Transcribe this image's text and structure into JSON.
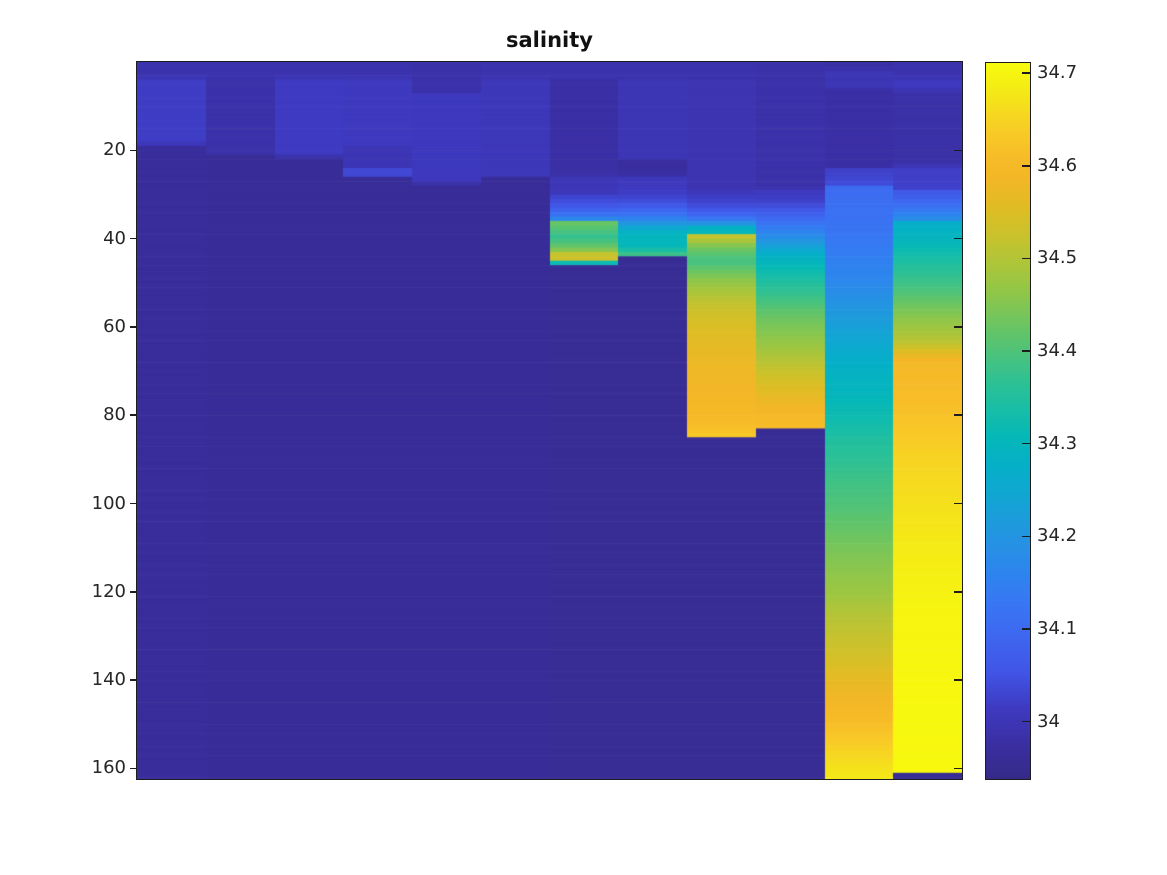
{
  "title": "salinity",
  "y_axis": {
    "tick_labels": [
      "20",
      "40",
      "60",
      "80",
      "100",
      "120",
      "140",
      "160"
    ],
    "tick_values": [
      20,
      40,
      60,
      80,
      100,
      120,
      140,
      160
    ]
  },
  "x_axis": {
    "tick_labels": []
  },
  "colorbar": {
    "tick_labels": [
      "34.7",
      "34.6",
      "34.5",
      "34.4",
      "34.3",
      "34.2",
      "34.1",
      "34"
    ],
    "tick_values": [
      34.7,
      34.6,
      34.5,
      34.4,
      34.3,
      34.2,
      34.1,
      34.0
    ],
    "min": 33.938,
    "max": 34.711
  },
  "chart_data": {
    "type": "heatmap",
    "title": "salinity",
    "xlabel": "",
    "ylabel": "",
    "n_columns": 12,
    "y_range": [
      0,
      162.4
    ],
    "y_ticks": [
      20,
      40,
      60,
      80,
      100,
      120,
      140,
      160
    ],
    "grid": false,
    "legend_position": "right-colorbar",
    "color_range": [
      33.938,
      34.711
    ],
    "colormap": "parula",
    "colormap_anchors": [
      [
        0.0,
        [
          53,
          42,
          135
        ]
      ],
      [
        0.05,
        [
          58,
          47,
          163
        ]
      ],
      [
        0.1,
        [
          62,
          58,
          193
        ]
      ],
      [
        0.15,
        [
          65,
          85,
          230
        ]
      ],
      [
        0.2,
        [
          62,
          103,
          240
        ]
      ],
      [
        0.25,
        [
          55,
          120,
          243
        ]
      ],
      [
        0.28,
        [
          47,
          130,
          240
        ]
      ],
      [
        0.32,
        [
          40,
          143,
          230
        ]
      ],
      [
        0.36,
        [
          30,
          155,
          220
        ]
      ],
      [
        0.4,
        [
          16,
          167,
          210
        ]
      ],
      [
        0.44,
        [
          5,
          176,
          199
        ]
      ],
      [
        0.48,
        [
          5,
          184,
          184
        ]
      ],
      [
        0.52,
        [
          26,
          190,
          165
        ]
      ],
      [
        0.56,
        [
          49,
          193,
          145
        ]
      ],
      [
        0.6,
        [
          80,
          195,
          120
        ]
      ],
      [
        0.64,
        [
          112,
          197,
          95
        ]
      ],
      [
        0.68,
        [
          144,
          198,
          73
        ]
      ],
      [
        0.72,
        [
          174,
          197,
          57
        ]
      ],
      [
        0.76,
        [
          202,
          194,
          44
        ]
      ],
      [
        0.8,
        [
          225,
          188,
          36
        ]
      ],
      [
        0.84,
        [
          243,
          182,
          38
        ]
      ],
      [
        0.87,
        [
          247,
          188,
          40
        ]
      ],
      [
        0.9,
        [
          248,
          201,
          39
        ]
      ],
      [
        0.93,
        [
          246,
          216,
          32
        ]
      ],
      [
        0.96,
        [
          244,
          233,
          22
        ]
      ],
      [
        1.0,
        [
          248,
          251,
          13
        ]
      ]
    ],
    "columns": [
      {
        "stops": [
          [
            0,
            33.99
          ],
          [
            3.4,
            33.99
          ],
          [
            3.7,
            34.02
          ],
          [
            18.4,
            34.02
          ],
          [
            18.8,
            33.965
          ],
          [
            162.4,
            33.965
          ]
        ]
      },
      {
        "stops": [
          [
            0,
            33.99
          ],
          [
            3.6,
            33.99
          ],
          [
            4.0,
            33.985
          ],
          [
            20.8,
            33.985
          ],
          [
            21.2,
            33.962
          ],
          [
            162.4,
            33.962
          ]
        ]
      },
      {
        "stops": [
          [
            0,
            33.99
          ],
          [
            3.4,
            33.99
          ],
          [
            3.7,
            34.015
          ],
          [
            21.3,
            34.015
          ],
          [
            21.7,
            33.962
          ],
          [
            162.4,
            33.962
          ]
        ]
      },
      {
        "stops": [
          [
            0,
            33.99
          ],
          [
            3.4,
            33.99
          ],
          [
            3.7,
            34.012
          ],
          [
            19.0,
            34.012
          ],
          [
            19.4,
            33.998
          ],
          [
            23.8,
            33.998
          ],
          [
            24.2,
            34.035
          ],
          [
            25.8,
            34.035
          ],
          [
            26.2,
            33.962
          ],
          [
            162.4,
            33.962
          ]
        ]
      },
      {
        "stops": [
          [
            0,
            33.985
          ],
          [
            6.8,
            33.985
          ],
          [
            7.2,
            34.01
          ],
          [
            27.3,
            34.01
          ],
          [
            27.7,
            33.962
          ],
          [
            162.4,
            33.962
          ]
        ]
      },
      {
        "stops": [
          [
            0,
            33.99
          ],
          [
            3.4,
            33.99
          ],
          [
            3.7,
            34.005
          ],
          [
            25.8,
            34.005
          ],
          [
            26.2,
            33.962
          ],
          [
            162.4,
            33.962
          ]
        ]
      },
      {
        "stops": [
          [
            0,
            33.99
          ],
          [
            3.6,
            33.99
          ],
          [
            4.0,
            33.978
          ],
          [
            25.4,
            33.978
          ],
          [
            25.8,
            34.0
          ],
          [
            29.6,
            34.005
          ],
          [
            30.5,
            34.03
          ],
          [
            32.8,
            34.06
          ],
          [
            34.0,
            34.1
          ],
          [
            35.2,
            34.15
          ],
          [
            35.9,
            34.19
          ],
          [
            36.2,
            34.43
          ],
          [
            37.5,
            34.41
          ],
          [
            39.5,
            34.375
          ],
          [
            41.0,
            34.4
          ],
          [
            42.0,
            34.43
          ],
          [
            43.0,
            34.47
          ],
          [
            43.4,
            34.48
          ],
          [
            43.7,
            34.6
          ],
          [
            44.3,
            34.6
          ],
          [
            44.7,
            34.46
          ],
          [
            45.4,
            34.44
          ],
          [
            45.8,
            33.958
          ],
          [
            162.4,
            33.958
          ]
        ]
      },
      {
        "stops": [
          [
            0,
            33.99
          ],
          [
            3.6,
            33.99
          ],
          [
            4.0,
            34.0
          ],
          [
            21.5,
            34.0
          ],
          [
            22.0,
            33.972
          ],
          [
            25.4,
            33.972
          ],
          [
            25.8,
            34.005
          ],
          [
            30.0,
            34.02
          ],
          [
            32.0,
            34.05
          ],
          [
            33.5,
            34.09
          ],
          [
            34.8,
            34.13
          ],
          [
            35.8,
            34.17
          ],
          [
            36.8,
            34.22
          ],
          [
            37.8,
            34.26
          ],
          [
            38.8,
            34.295
          ],
          [
            41.8,
            34.305
          ],
          [
            42.6,
            34.34
          ],
          [
            43.2,
            34.37
          ],
          [
            43.5,
            34.38
          ],
          [
            43.8,
            33.958
          ],
          [
            162.4,
            33.958
          ]
        ]
      },
      {
        "stops": [
          [
            0,
            33.99
          ],
          [
            3.6,
            33.99
          ],
          [
            4.0,
            33.995
          ],
          [
            29.3,
            33.995
          ],
          [
            29.7,
            34.015
          ],
          [
            32.0,
            34.03
          ],
          [
            33.5,
            34.06
          ],
          [
            34.8,
            34.1
          ],
          [
            35.8,
            34.14
          ],
          [
            36.4,
            34.18
          ],
          [
            36.9,
            34.24
          ],
          [
            37.5,
            34.28
          ],
          [
            38.2,
            34.3
          ],
          [
            38.5,
            34.3
          ],
          [
            38.8,
            34.52
          ],
          [
            39.6,
            34.52
          ],
          [
            40.5,
            34.49
          ],
          [
            41.5,
            34.455
          ],
          [
            42.5,
            34.43
          ],
          [
            44.0,
            34.4
          ],
          [
            45.3,
            34.39
          ],
          [
            47.0,
            34.42
          ],
          [
            49.0,
            34.455
          ],
          [
            51.0,
            34.48
          ],
          [
            53.0,
            34.5
          ],
          [
            55.0,
            34.52
          ],
          [
            58.0,
            34.54
          ],
          [
            62.0,
            34.555
          ],
          [
            68.0,
            34.575
          ],
          [
            75.0,
            34.59
          ],
          [
            80.0,
            34.6
          ],
          [
            82.0,
            34.61
          ],
          [
            84.0,
            34.625
          ],
          [
            84.6,
            34.63
          ],
          [
            85.0,
            33.958
          ],
          [
            162.4,
            33.958
          ]
        ]
      },
      {
        "stops": [
          [
            0,
            33.985
          ],
          [
            28.4,
            33.985
          ],
          [
            28.8,
            34.01
          ],
          [
            31.5,
            34.025
          ],
          [
            33.0,
            34.05
          ],
          [
            34.5,
            34.08
          ],
          [
            36.0,
            34.11
          ],
          [
            37.5,
            34.14
          ],
          [
            39.0,
            34.17
          ],
          [
            40.5,
            34.2
          ],
          [
            42.0,
            34.24
          ],
          [
            43.5,
            34.275
          ],
          [
            45.5,
            34.3
          ],
          [
            48.0,
            34.33
          ],
          [
            51.0,
            34.36
          ],
          [
            54.0,
            34.39
          ],
          [
            57.0,
            34.42
          ],
          [
            60.0,
            34.445
          ],
          [
            63.0,
            34.465
          ],
          [
            66.0,
            34.49
          ],
          [
            69.0,
            34.515
          ],
          [
            72.0,
            34.54
          ],
          [
            75.0,
            34.56
          ],
          [
            78.0,
            34.585
          ],
          [
            81.0,
            34.6
          ],
          [
            82.6,
            34.61
          ],
          [
            83.0,
            33.958
          ],
          [
            162.4,
            33.958
          ]
        ]
      },
      {
        "stops": [
          [
            0,
            33.98
          ],
          [
            1.4,
            33.98
          ],
          [
            1.7,
            34.0
          ],
          [
            5.5,
            34.0
          ],
          [
            5.9,
            33.978
          ],
          [
            23.8,
            33.978
          ],
          [
            24.2,
            34.02
          ],
          [
            27.6,
            34.04
          ],
          [
            28.0,
            34.1
          ],
          [
            30.0,
            34.105
          ],
          [
            35.0,
            34.115
          ],
          [
            40.0,
            34.13
          ],
          [
            45.0,
            34.15
          ],
          [
            50.0,
            34.17
          ],
          [
            55.0,
            34.2
          ],
          [
            60.0,
            34.23
          ],
          [
            65.0,
            34.26
          ],
          [
            70.0,
            34.285
          ],
          [
            75.0,
            34.3
          ],
          [
            78.0,
            34.315
          ],
          [
            82.0,
            34.33
          ],
          [
            86.0,
            34.35
          ],
          [
            90.0,
            34.365
          ],
          [
            95.0,
            34.385
          ],
          [
            100.0,
            34.4
          ],
          [
            105.0,
            34.42
          ],
          [
            110.0,
            34.44
          ],
          [
            115.0,
            34.46
          ],
          [
            120.0,
            34.475
          ],
          [
            125.0,
            34.5
          ],
          [
            130.0,
            34.52
          ],
          [
            135.0,
            34.54
          ],
          [
            140.0,
            34.565
          ],
          [
            145.0,
            34.59
          ],
          [
            150.0,
            34.615
          ],
          [
            153.0,
            34.63
          ],
          [
            156.0,
            34.65
          ],
          [
            159.0,
            34.665
          ],
          [
            162.4,
            34.68
          ]
        ]
      },
      {
        "stops": [
          [
            0,
            33.99
          ],
          [
            3.4,
            33.99
          ],
          [
            3.7,
            34.01
          ],
          [
            6.3,
            34.01
          ],
          [
            6.7,
            33.982
          ],
          [
            23.3,
            33.982
          ],
          [
            23.7,
            34.02
          ],
          [
            28.5,
            34.025
          ],
          [
            29.5,
            34.06
          ],
          [
            31.5,
            34.09
          ],
          [
            33.0,
            34.12
          ],
          [
            34.5,
            34.16
          ],
          [
            35.9,
            34.19
          ],
          [
            36.3,
            34.27
          ],
          [
            38.0,
            34.285
          ],
          [
            40.5,
            34.3
          ],
          [
            43.0,
            34.325
          ],
          [
            46.0,
            34.35
          ],
          [
            49.0,
            34.375
          ],
          [
            52.0,
            34.4
          ],
          [
            55.0,
            34.43
          ],
          [
            58.0,
            34.46
          ],
          [
            61.0,
            34.485
          ],
          [
            63.5,
            34.51
          ],
          [
            65.5,
            34.55
          ],
          [
            67.0,
            34.58
          ],
          [
            68.5,
            34.6
          ],
          [
            72.0,
            34.605
          ],
          [
            78.0,
            34.615
          ],
          [
            83.0,
            34.63
          ],
          [
            90.0,
            34.65
          ],
          [
            95.0,
            34.66
          ],
          [
            105.0,
            34.675
          ],
          [
            115.0,
            34.69
          ],
          [
            125.0,
            34.7
          ],
          [
            150.0,
            34.706
          ],
          [
            160.9,
            34.706
          ],
          [
            161.1,
            33.955
          ],
          [
            162.4,
            33.955
          ]
        ]
      }
    ]
  }
}
